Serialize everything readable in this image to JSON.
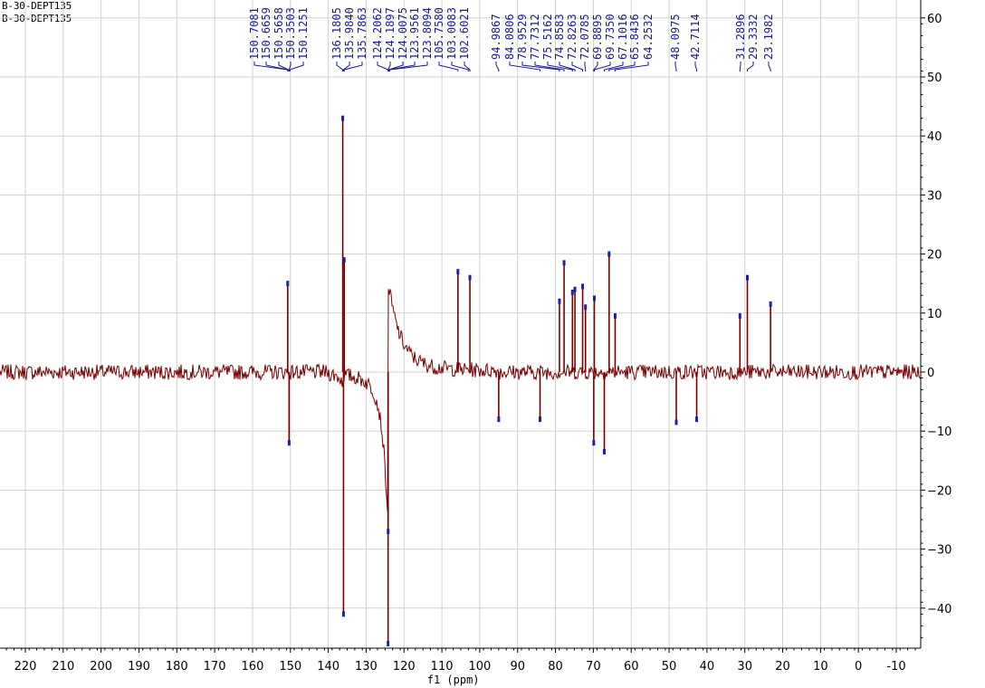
{
  "header": {
    "line1": "B-30-DEPT135",
    "line2": "B-30-DEPT135"
  },
  "chart_data": {
    "type": "line",
    "title": "",
    "xlabel": "f1 (ppm)",
    "ylabel": "",
    "xlim": [
      226,
      -16
    ],
    "ylim": [
      -46,
      61
    ],
    "x_ticks": [
      220,
      210,
      200,
      190,
      180,
      170,
      160,
      150,
      140,
      130,
      120,
      110,
      100,
      90,
      80,
      70,
      60,
      50,
      40,
      30,
      20,
      10,
      0,
      -10
    ],
    "y_ticks": [
      60,
      50,
      40,
      30,
      20,
      10,
      0,
      -10,
      -20,
      -30,
      -40
    ],
    "grid": true,
    "colors": {
      "spectrum": "#7a0000",
      "labels": "#1a1a8c",
      "grid": "#d0d0d0"
    },
    "peak_labels": [
      "150.7081",
      "150.6659",
      "150.5658",
      "150.3503",
      "150.1251",
      "136.1805",
      "135.9840",
      "135.7863",
      "124.2062",
      "124.1897",
      "124.0075",
      "123.9561",
      "123.8094",
      "105.7580",
      "103.0083",
      "102.6021",
      "94.9867",
      "84.0806",
      "78.9529",
      "77.7312",
      "75.5162",
      "74.8583",
      "72.8263",
      "72.0785",
      "69.8895",
      "69.7350",
      "67.1016",
      "65.8436",
      "64.2532",
      "48.0975",
      "42.7114",
      "31.2896",
      "29.3332",
      "23.1982"
    ],
    "peaks": [
      {
        "ppm": 150.71,
        "intensity": 15
      },
      {
        "ppm": 150.35,
        "intensity": -12
      },
      {
        "ppm": 136.18,
        "intensity": 43
      },
      {
        "ppm": 135.98,
        "intensity": -41
      },
      {
        "ppm": 135.79,
        "intensity": 19
      },
      {
        "ppm": 124.21,
        "intensity": -46
      },
      {
        "ppm": 124.19,
        "intensity": -27
      },
      {
        "ppm": 105.76,
        "intensity": 17
      },
      {
        "ppm": 102.6,
        "intensity": 16
      },
      {
        "ppm": 94.99,
        "intensity": -8
      },
      {
        "ppm": 84.08,
        "intensity": -8
      },
      {
        "ppm": 78.95,
        "intensity": 12
      },
      {
        "ppm": 77.73,
        "intensity": 18.5
      },
      {
        "ppm": 75.52,
        "intensity": 13.5
      },
      {
        "ppm": 74.86,
        "intensity": 14
      },
      {
        "ppm": 72.83,
        "intensity": 14.5
      },
      {
        "ppm": 72.08,
        "intensity": 11
      },
      {
        "ppm": 69.89,
        "intensity": -12
      },
      {
        "ppm": 69.74,
        "intensity": 12.5
      },
      {
        "ppm": 67.1,
        "intensity": -13.5
      },
      {
        "ppm": 65.84,
        "intensity": 20
      },
      {
        "ppm": 64.25,
        "intensity": 9.5
      },
      {
        "ppm": 48.1,
        "intensity": -8.5
      },
      {
        "ppm": 42.71,
        "intensity": -8
      },
      {
        "ppm": 31.29,
        "intensity": 9.5
      },
      {
        "ppm": 29.33,
        "intensity": 16
      },
      {
        "ppm": 23.2,
        "intensity": 11.5
      }
    ]
  }
}
